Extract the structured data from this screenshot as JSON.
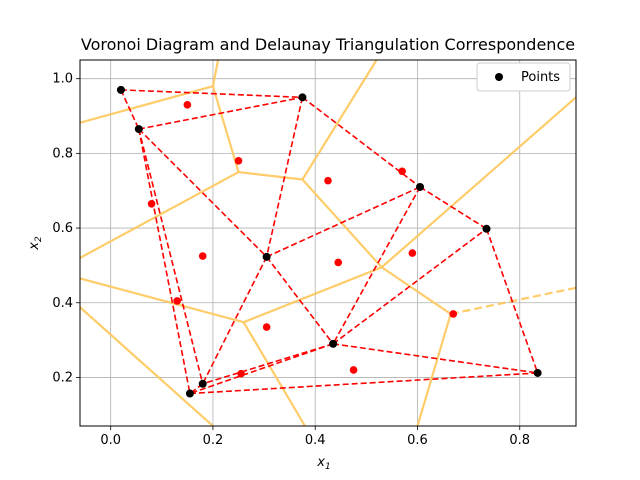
{
  "chart_data": {
    "type": "scatter",
    "title": "Voronoi Diagram and Delaunay Triangulation Correspondence",
    "xlabel": "x",
    "xlabel_sub": "1",
    "ylabel": "x",
    "ylabel_sub": "2",
    "xlim": [
      -0.06,
      0.91
    ],
    "ylim": [
      0.07,
      1.05
    ],
    "xticks": [
      0.0,
      0.2,
      0.4,
      0.6,
      0.8
    ],
    "xtick_labels": [
      "0.0",
      "0.2",
      "0.4",
      "0.6",
      "0.8"
    ],
    "yticks": [
      0.2,
      0.4,
      0.6,
      0.8,
      1.0
    ],
    "ytick_labels": [
      "0.2",
      "0.4",
      "0.6",
      "0.8",
      "1.0"
    ],
    "grid": true,
    "legend": {
      "position": "top-right",
      "entries": [
        {
          "label": "Points",
          "color": "#000000"
        }
      ]
    },
    "colors": {
      "points": "#000000",
      "delaunay": "#ff0000",
      "voronoi": "#ffc65a"
    },
    "points": [
      [
        0.02,
        0.97
      ],
      [
        0.055,
        0.865
      ],
      [
        0.375,
        0.95
      ],
      [
        0.605,
        0.71
      ],
      [
        0.735,
        0.598
      ],
      [
        0.305,
        0.523
      ],
      [
        0.435,
        0.29
      ],
      [
        0.18,
        0.183
      ],
      [
        0.155,
        0.157
      ],
      [
        0.835,
        0.212
      ]
    ],
    "delaunay_edges": [
      [
        [
          0.02,
          0.97
        ],
        [
          0.055,
          0.865
        ]
      ],
      [
        [
          0.02,
          0.97
        ],
        [
          0.375,
          0.95
        ]
      ],
      [
        [
          0.055,
          0.865
        ],
        [
          0.375,
          0.95
        ]
      ],
      [
        [
          0.055,
          0.865
        ],
        [
          0.305,
          0.523
        ]
      ],
      [
        [
          0.375,
          0.95
        ],
        [
          0.305,
          0.523
        ]
      ],
      [
        [
          0.375,
          0.95
        ],
        [
          0.605,
          0.71
        ]
      ],
      [
        [
          0.305,
          0.523
        ],
        [
          0.605,
          0.71
        ]
      ],
      [
        [
          0.605,
          0.71
        ],
        [
          0.735,
          0.598
        ]
      ],
      [
        [
          0.605,
          0.71
        ],
        [
          0.435,
          0.29
        ]
      ],
      [
        [
          0.305,
          0.523
        ],
        [
          0.435,
          0.29
        ]
      ],
      [
        [
          0.435,
          0.29
        ],
        [
          0.735,
          0.598
        ]
      ],
      [
        [
          0.735,
          0.598
        ],
        [
          0.835,
          0.212
        ]
      ],
      [
        [
          0.435,
          0.29
        ],
        [
          0.835,
          0.212
        ]
      ],
      [
        [
          0.155,
          0.157
        ],
        [
          0.835,
          0.212
        ]
      ],
      [
        [
          0.435,
          0.29
        ],
        [
          0.18,
          0.183
        ]
      ],
      [
        [
          0.435,
          0.29
        ],
        [
          0.155,
          0.157
        ]
      ],
      [
        [
          0.305,
          0.523
        ],
        [
          0.18,
          0.183
        ]
      ],
      [
        [
          0.055,
          0.865
        ],
        [
          0.18,
          0.183
        ]
      ],
      [
        [
          0.055,
          0.865
        ],
        [
          0.155,
          0.157
        ]
      ],
      [
        [
          0.18,
          0.183
        ],
        [
          0.155,
          0.157
        ]
      ]
    ],
    "edge_midpoints": [
      [
        0.15,
        0.93
      ],
      [
        0.25,
        0.78
      ],
      [
        0.08,
        0.665
      ],
      [
        0.18,
        0.525
      ],
      [
        0.13,
        0.405
      ],
      [
        0.305,
        0.335
      ],
      [
        0.255,
        0.21
      ],
      [
        0.475,
        0.22
      ],
      [
        0.425,
        0.727
      ],
      [
        0.57,
        0.752
      ],
      [
        0.445,
        0.508
      ],
      [
        0.59,
        0.533
      ],
      [
        0.67,
        0.37
      ]
    ],
    "voronoi_edges": [
      [
        [
          -0.06,
          0.882
        ],
        [
          0.2,
          0.98
        ]
      ],
      [
        [
          0.2,
          0.98
        ],
        [
          0.21,
          1.05
        ]
      ],
      [
        [
          0.2,
          0.98
        ],
        [
          0.25,
          0.75
        ]
      ],
      [
        [
          0.25,
          0.75
        ],
        [
          0.375,
          0.73
        ]
      ],
      [
        [
          0.375,
          0.73
        ],
        [
          0.52,
          1.05
        ]
      ],
      [
        [
          0.25,
          0.75
        ],
        [
          -0.06,
          0.52
        ]
      ],
      [
        [
          0.375,
          0.73
        ],
        [
          0.53,
          0.495
        ]
      ],
      [
        [
          0.53,
          0.495
        ],
        [
          0.91,
          0.95
        ]
      ],
      [
        [
          0.53,
          0.495
        ],
        [
          0.26,
          0.348
        ]
      ],
      [
        [
          0.53,
          0.495
        ],
        [
          0.665,
          0.37
        ]
      ],
      [
        [
          0.665,
          0.37
        ],
        [
          0.6,
          0.07
        ]
      ],
      [
        [
          -0.06,
          0.465
        ],
        [
          0.26,
          0.348
        ]
      ],
      [
        [
          0.26,
          0.348
        ],
        [
          0.38,
          0.07
        ]
      ],
      [
        [
          -0.06,
          0.388
        ],
        [
          0.2,
          0.07
        ]
      ]
    ],
    "voronoi_dashed_edges": [
      [
        [
          0.665,
          0.37
        ],
        [
          0.91,
          0.44
        ]
      ]
    ]
  }
}
